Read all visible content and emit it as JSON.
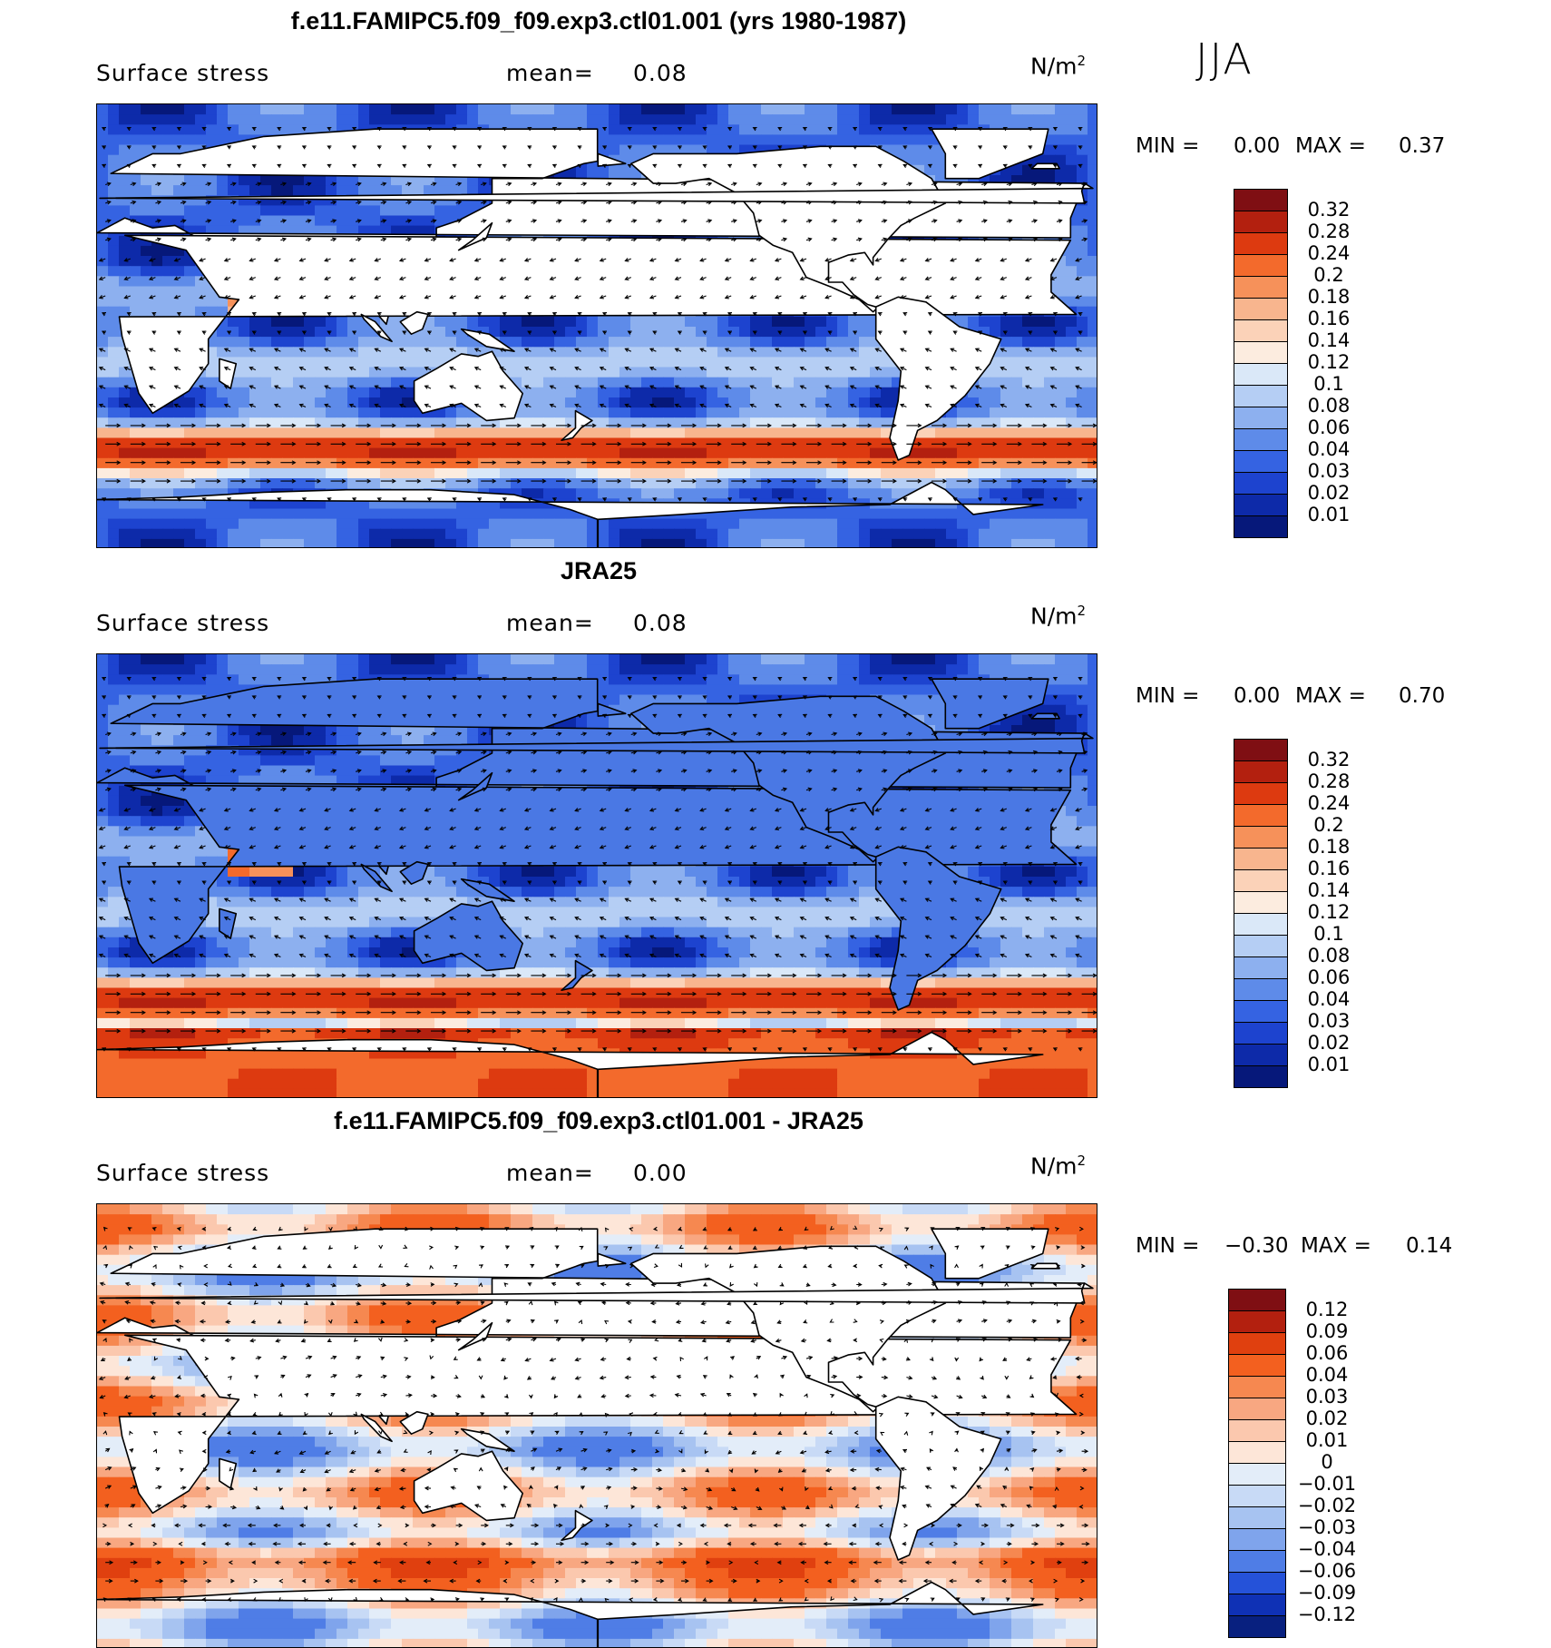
{
  "season": "JJA",
  "panels": [
    {
      "title": "f.e11.FAMIPC5.f09_f09.exp3.ctl01.001 (yrs 1980-1987)",
      "variable": "Surface stress",
      "mean_label": "mean=",
      "mean_value": "0.08",
      "unit_base": "N/m",
      "unit_exp": "2",
      "min_label": "MIN =",
      "min_value": "0.00",
      "max_label": "MAX =",
      "max_value": "0.37",
      "colorbar": {
        "ticks": [
          "0.32",
          "0.28",
          "0.24",
          "0.2",
          "0.18",
          "0.16",
          "0.14",
          "0.12",
          "0.1",
          "0.08",
          "0.06",
          "0.04",
          "0.03",
          "0.02",
          "0.01"
        ],
        "colors": [
          "#7f0f13",
          "#b3200f",
          "#dd3a10",
          "#f36a2c",
          "#f6915a",
          "#f8b58e",
          "#fbd2b8",
          "#fcecdf",
          "#dae8f8",
          "#b5cef4",
          "#8db0ef",
          "#5e8be9",
          "#3563e2",
          "#1d43cf",
          "#0d2aa9",
          "#06187a"
        ]
      }
    },
    {
      "title": "JRA25",
      "variable": "Surface stress",
      "mean_label": "mean=",
      "mean_value": "0.08",
      "unit_base": "N/m",
      "unit_exp": "2",
      "min_label": "MIN =",
      "min_value": "0.00",
      "max_label": "MAX =",
      "max_value": "0.70",
      "colorbar": {
        "ticks": [
          "0.32",
          "0.28",
          "0.24",
          "0.2",
          "0.18",
          "0.16",
          "0.14",
          "0.12",
          "0.1",
          "0.08",
          "0.06",
          "0.04",
          "0.03",
          "0.02",
          "0.01"
        ],
        "colors": [
          "#7f0f13",
          "#b3200f",
          "#dd3a10",
          "#f36a2c",
          "#f6915a",
          "#f8b58e",
          "#fbd2b8",
          "#fcecdf",
          "#dae8f8",
          "#b5cef4",
          "#8db0ef",
          "#5e8be9",
          "#3563e2",
          "#1d43cf",
          "#0d2aa9",
          "#06187a"
        ]
      }
    },
    {
      "title": "f.e11.FAMIPC5.f09_f09.exp3.ctl01.001 - JRA25",
      "variable": "Surface stress",
      "mean_label": "mean=",
      "mean_value": "0.00",
      "unit_base": "N/m",
      "unit_exp": "2",
      "min_label": "MIN =",
      "min_value": "−0.30",
      "max_label": "MAX =",
      "max_value": "0.14",
      "colorbar": {
        "ticks": [
          "0.12",
          "0.09",
          "0.06",
          "0.04",
          "0.03",
          "0.02",
          "0.01",
          "0",
          "−0.01",
          "−0.02",
          "−0.03",
          "−0.04",
          "−0.06",
          "−0.09",
          "−0.12"
        ],
        "colors": [
          "#7f0f13",
          "#b3200f",
          "#e0400f",
          "#f3601f",
          "#f68850",
          "#f8a781",
          "#fbc8ae",
          "#fde6d8",
          "#e3edf9",
          "#c8daf6",
          "#a7c3f1",
          "#7fa4ec",
          "#4f7de6",
          "#2552d9",
          "#0f31b5",
          "#08207f"
        ]
      }
    }
  ]
}
